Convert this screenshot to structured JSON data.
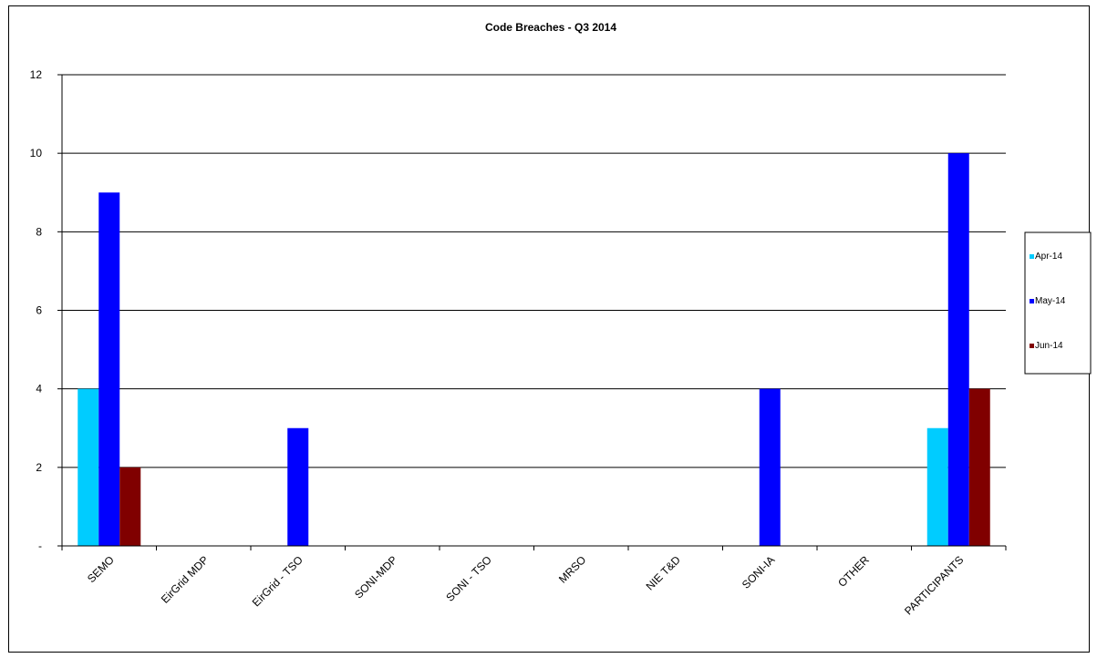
{
  "chart_data": {
    "type": "bar",
    "title": "Code Breaches - Q3 2014",
    "xlabel": "",
    "ylabel": "",
    "ylim": [
      0,
      12
    ],
    "yticks": [
      "-",
      "2",
      "4",
      "6",
      "8",
      "10",
      "12"
    ],
    "grid": true,
    "legend_position": "right",
    "categories": [
      "SEMO",
      "EirGrid MDP",
      "EirGrid - TSO",
      "SONI-MDP",
      "SONI - TSO",
      "MRSO",
      "NIE T&D",
      "SONI-IA",
      "OTHER",
      "PARTICIPANTS"
    ],
    "series": [
      {
        "name": "Apr-14",
        "color": "#00ccff",
        "values": [
          4,
          0,
          0,
          0,
          0,
          0,
          0,
          0,
          0,
          3
        ]
      },
      {
        "name": "May-14",
        "color": "#0000ff",
        "values": [
          9,
          0,
          3,
          0,
          0,
          0,
          0,
          4,
          0,
          10
        ]
      },
      {
        "name": "Jun-14",
        "color": "#800000",
        "values": [
          2,
          0,
          0,
          0,
          0,
          0,
          0,
          0,
          0,
          4
        ]
      }
    ]
  }
}
